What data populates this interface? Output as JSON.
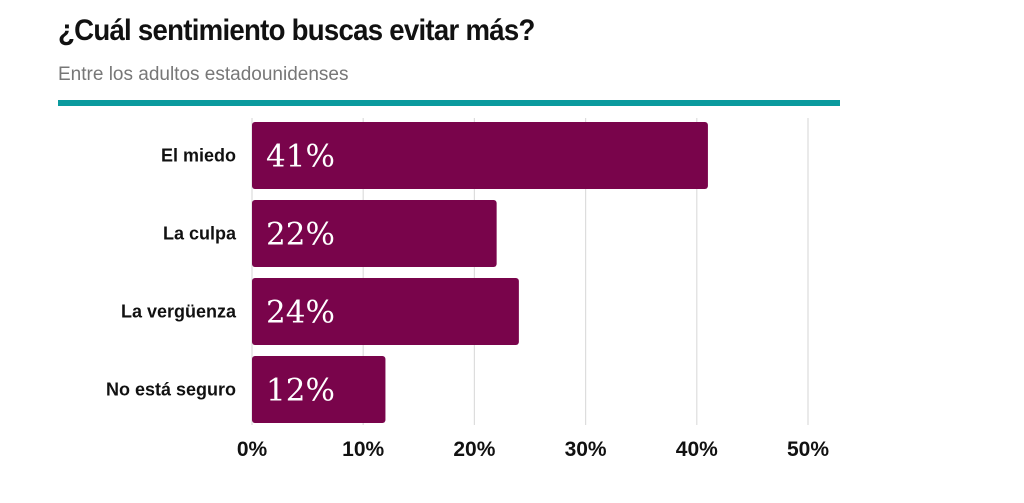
{
  "chart_data": {
    "type": "bar",
    "orientation": "horizontal",
    "title": "¿Cuál sentimiento buscas evitar más?",
    "subtitle": "Entre los adultos estadounidenses",
    "categories": [
      "El miedo",
      "La culpa",
      "La vergüenza",
      "No está seguro"
    ],
    "values": [
      41,
      22,
      24,
      12
    ],
    "value_labels": [
      "41%",
      "22%",
      "24%",
      "12%"
    ],
    "xlim": [
      0,
      50
    ],
    "xticks": [
      0,
      10,
      20,
      30,
      40,
      50
    ],
    "xtick_labels": [
      "0%",
      "10%",
      "20%",
      "30%",
      "40%",
      "50%"
    ],
    "xlabel": "",
    "ylabel": "",
    "grid": true
  },
  "colors": {
    "bar": "#79044b",
    "rule": "#0b9a9e",
    "grid": "#dddddd"
  }
}
